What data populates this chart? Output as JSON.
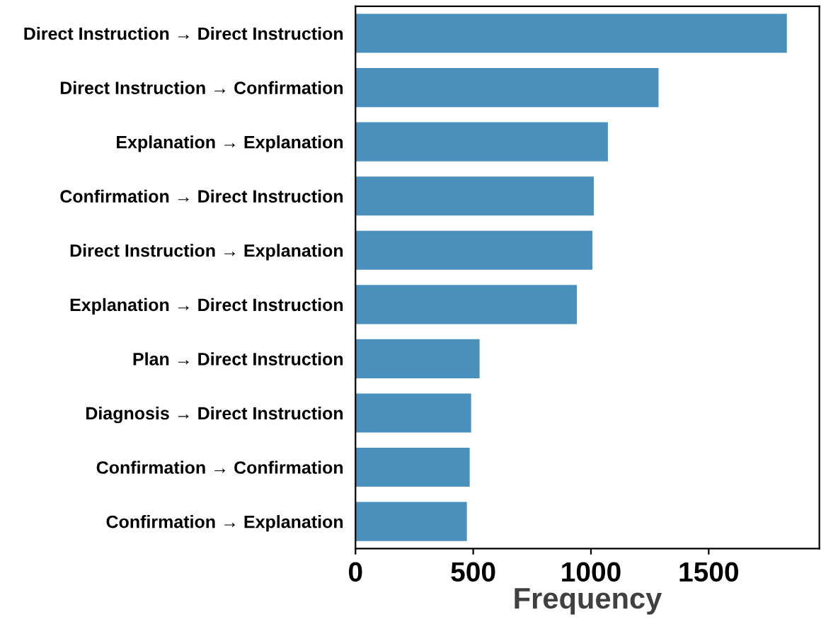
{
  "chart_data": {
    "type": "bar",
    "orientation": "horizontal",
    "xlabel": "Frequency",
    "categories": [
      "Direct Instruction → Direct Instruction",
      "Direct Instruction → Confirmation",
      "Explanation → Explanation",
      "Confirmation → Direct Instruction",
      "Direct Instruction → Explanation",
      "Explanation → Direct Instruction",
      "Plan → Direct Instruction",
      "Diagnosis → Direct Instruction",
      "Confirmation → Confirmation",
      "Confirmation → Explanation"
    ],
    "values": [
      1832,
      1287,
      1072,
      1012,
      1006,
      940,
      527,
      491,
      485,
      473
    ],
    "color": "#4a90bc",
    "xlim": [
      0,
      1970
    ],
    "xticks": [
      0,
      500,
      1000,
      1500
    ],
    "grid": false,
    "legend": false
  }
}
